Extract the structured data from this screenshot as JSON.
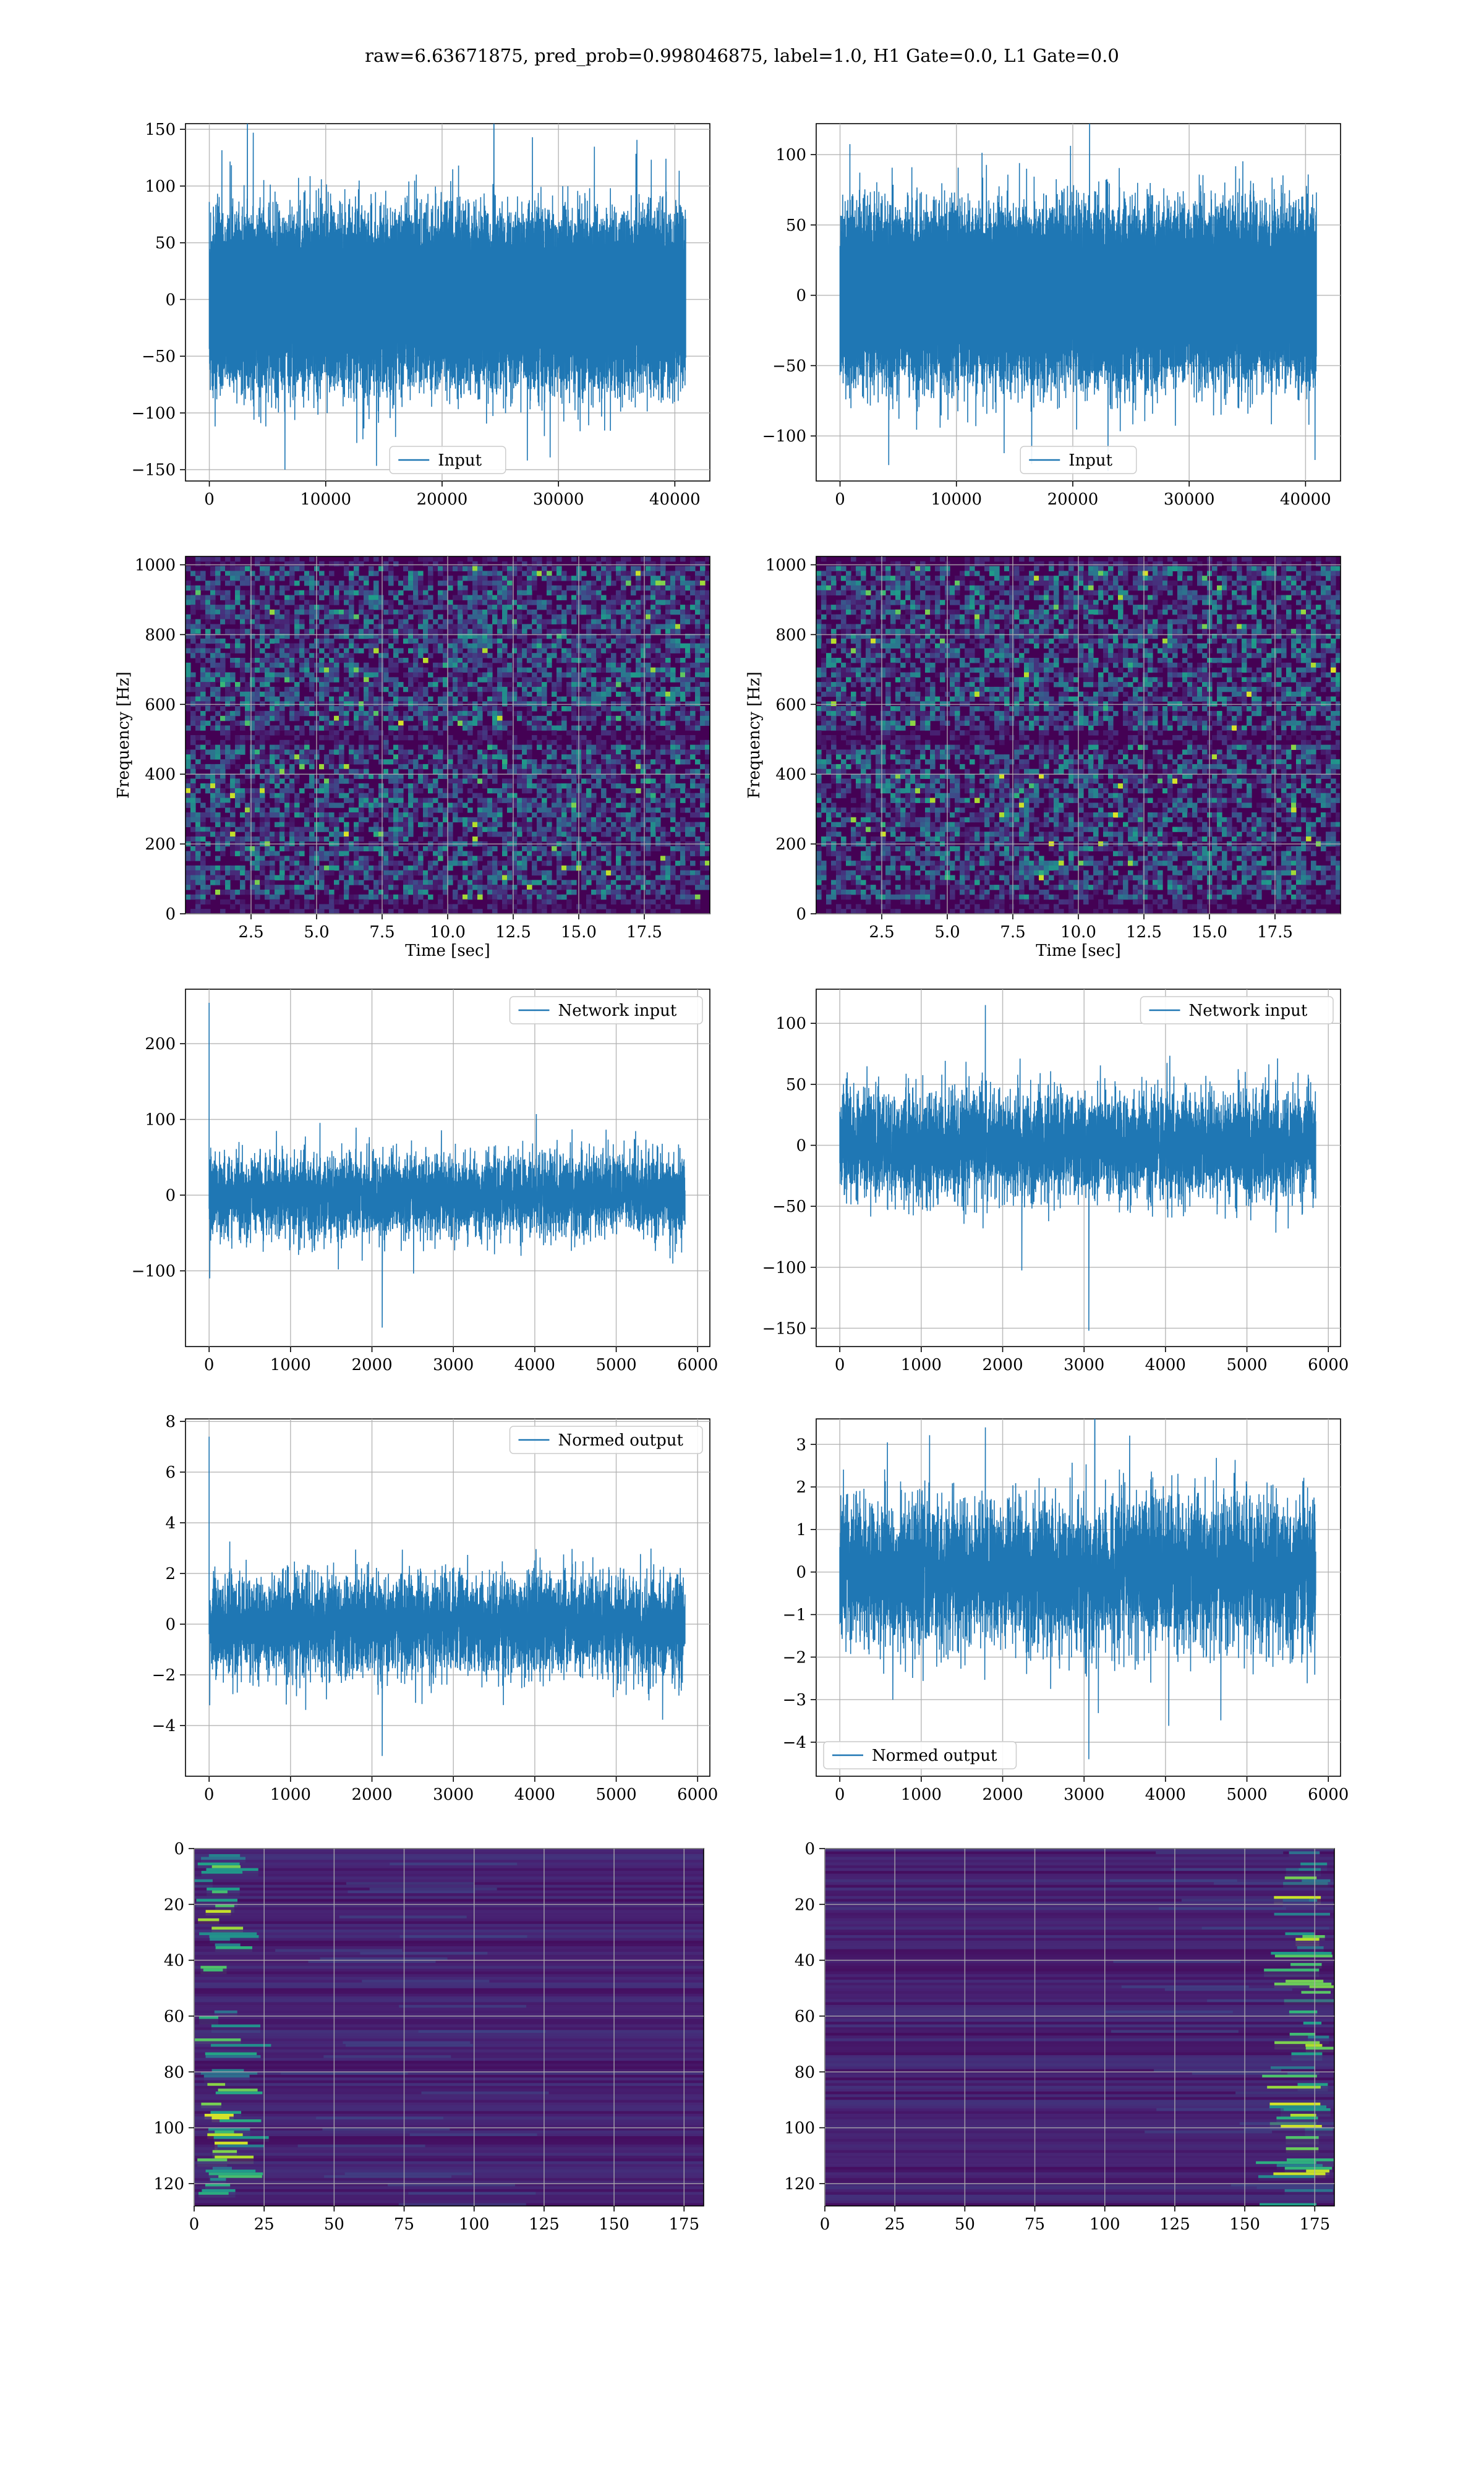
{
  "figure": {
    "title": "raw=6.63671875, pred_prob=0.998046875, label=1.0, H1 Gate=0.0, L1 Gate=0.0"
  },
  "colors": {
    "line": "#1f77b4",
    "grid": "#b0b0b0",
    "viridis_dark": "#440154",
    "viridis_teal": "#21918c",
    "viridis_green": "#5ec962",
    "viridis_yellow": "#fde725"
  },
  "chart_data": [
    {
      "id": "h1-input",
      "type": "line",
      "legend": [
        "Input"
      ],
      "legend_loc": "lower-center",
      "series": [
        {
          "name": "Input",
          "n_points": 40960,
          "amplitude_std": 31,
          "peak_values": [
            143,
            -150
          ]
        }
      ],
      "xlim": [
        -2048,
        43008
      ],
      "ylim": [
        -160,
        155
      ],
      "xticks": [
        0,
        10000,
        20000,
        30000,
        40000
      ],
      "yticks": [
        -150,
        -100,
        -50,
        0,
        50,
        100,
        150
      ],
      "grid": true
    },
    {
      "id": "l1-input",
      "type": "line",
      "legend": [
        "Input"
      ],
      "legend_loc": "lower-center",
      "series": [
        {
          "name": "Input",
          "n_points": 40960,
          "amplitude_std": 25,
          "peak_values": [
            124,
            -120
          ]
        }
      ],
      "xlim": [
        -2048,
        43008
      ],
      "ylim": [
        -132,
        122
      ],
      "xticks": [
        0,
        10000,
        20000,
        30000,
        40000
      ],
      "yticks": [
        -100,
        -50,
        0,
        50,
        100
      ],
      "grid": true
    },
    {
      "id": "h1-spectrogram",
      "type": "heatmap",
      "xlabel": "Time [sec]",
      "ylabel": "Frequency [Hz]",
      "xlim": [
        0,
        20
      ],
      "ylim": [
        0,
        1024
      ],
      "xticks": [
        2.5,
        5.0,
        7.5,
        10.0,
        12.5,
        15.0,
        17.5
      ],
      "xtick_labels": [
        "2.5",
        "5.0",
        "7.5",
        "10.0",
        "12.5",
        "15.0",
        "17.5"
      ],
      "yticks": [
        0,
        200,
        400,
        600,
        800,
        1000
      ],
      "colormap": "viridis",
      "dark_bands_hz": [
        [
          0,
          40
        ],
        [
          480,
          520
        ],
        [
          1000,
          1024
        ]
      ],
      "grid": true
    },
    {
      "id": "l1-spectrogram",
      "type": "heatmap",
      "xlabel": "Time [sec]",
      "ylabel": "Frequency [Hz]",
      "xlim": [
        0,
        20
      ],
      "ylim": [
        0,
        1024
      ],
      "xticks": [
        2.5,
        5.0,
        7.5,
        10.0,
        12.5,
        15.0,
        17.5
      ],
      "xtick_labels": [
        "2.5",
        "5.0",
        "7.5",
        "10.0",
        "12.5",
        "15.0",
        "17.5"
      ],
      "yticks": [
        0,
        200,
        400,
        600,
        800,
        1000
      ],
      "colormap": "viridis",
      "dark_bands_hz": [
        [
          0,
          40
        ],
        [
          480,
          520
        ],
        [
          1000,
          1024
        ]
      ],
      "grid": true
    },
    {
      "id": "h1-network-input",
      "type": "line",
      "legend": [
        "Network input"
      ],
      "legend_loc": "upper-right",
      "series": [
        {
          "name": "Network input",
          "n_points": 5850,
          "amplitude_std": 26,
          "spikes": [
            [
              0,
              254
            ],
            [
              10,
              -110
            ],
            [
              2130,
              -175
            ]
          ]
        }
      ],
      "xlim": [
        -290,
        6150
      ],
      "ylim": [
        -200,
        272
      ],
      "xticks": [
        0,
        1000,
        2000,
        3000,
        4000,
        5000,
        6000
      ],
      "yticks": [
        -100,
        0,
        100,
        200
      ],
      "grid": true
    },
    {
      "id": "l1-network-input",
      "type": "line",
      "legend": [
        "Network input"
      ],
      "legend_loc": "upper-right",
      "series": [
        {
          "name": "Network input",
          "n_points": 5850,
          "amplitude_std": 21,
          "spikes": [
            [
              1790,
              115
            ],
            [
              3060,
              -152
            ]
          ]
        }
      ],
      "xlim": [
        -290,
        6150
      ],
      "ylim": [
        -165,
        128
      ],
      "xticks": [
        0,
        1000,
        2000,
        3000,
        4000,
        5000,
        6000
      ],
      "yticks": [
        -150,
        -100,
        -50,
        0,
        50,
        100
      ],
      "grid": true
    },
    {
      "id": "h1-normed-output",
      "type": "line",
      "legend": [
        "Normed output"
      ],
      "legend_loc": "upper-right",
      "series": [
        {
          "name": "Normed output",
          "n_points": 5850,
          "amplitude_std": 0.95,
          "spikes": [
            [
              0,
              7.4
            ],
            [
              10,
              -3.2
            ],
            [
              2130,
              -5.2
            ]
          ]
        }
      ],
      "xlim": [
        -290,
        6150
      ],
      "ylim": [
        -6.0,
        8.1
      ],
      "xticks": [
        0,
        1000,
        2000,
        3000,
        4000,
        5000,
        6000
      ],
      "yticks": [
        -4,
        -2,
        0,
        2,
        4,
        6,
        8
      ],
      "grid": true
    },
    {
      "id": "l1-normed-output",
      "type": "line",
      "legend": [
        "Normed output"
      ],
      "legend_loc": "lower-left",
      "series": [
        {
          "name": "Normed output",
          "n_points": 5850,
          "amplitude_std": 0.85,
          "spikes": [
            [
              1790,
              3.4
            ],
            [
              3060,
              -4.4
            ]
          ]
        }
      ],
      "xlim": [
        -290,
        6150
      ],
      "ylim": [
        -4.8,
        3.6
      ],
      "xticks": [
        0,
        1000,
        2000,
        3000,
        4000,
        5000,
        6000
      ],
      "yticks": [
        -4,
        -3,
        -2,
        -1,
        0,
        1,
        2,
        3
      ],
      "grid": true
    },
    {
      "id": "h1-feature-map",
      "type": "heatmap",
      "xlim": [
        0,
        182
      ],
      "ylim": [
        128,
        0
      ],
      "xticks": [
        0,
        25,
        50,
        75,
        100,
        125,
        150,
        175
      ],
      "yticks": [
        0,
        20,
        40,
        60,
        80,
        100,
        120
      ],
      "colormap": "viridis",
      "bright_region": "left",
      "grid": true
    },
    {
      "id": "l1-feature-map",
      "type": "heatmap",
      "xlim": [
        0,
        182
      ],
      "ylim": [
        128,
        0
      ],
      "xticks": [
        0,
        25,
        50,
        75,
        100,
        125,
        150,
        175
      ],
      "yticks": [
        0,
        20,
        40,
        60,
        80,
        100,
        120
      ],
      "colormap": "viridis",
      "bright_region": "right",
      "grid": true
    }
  ]
}
